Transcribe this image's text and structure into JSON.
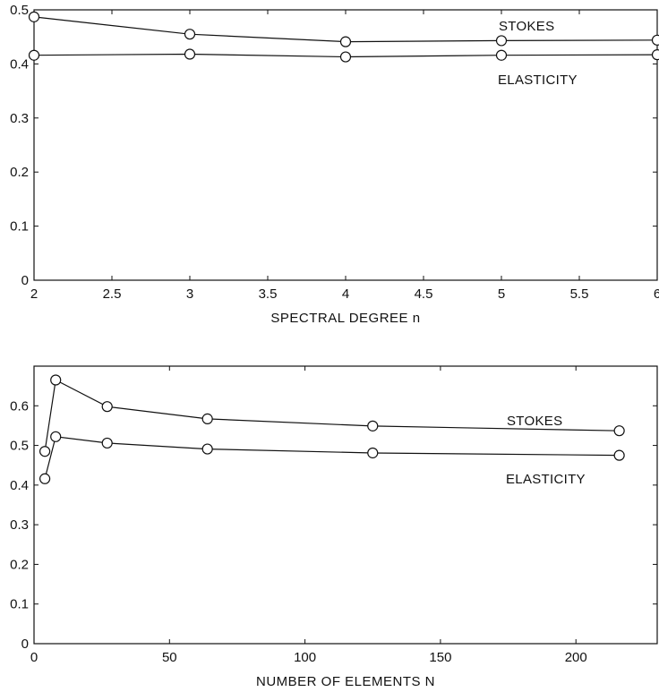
{
  "chart_data": [
    {
      "type": "line",
      "title": "",
      "xlabel": "SPECTRAL DEGREE n",
      "ylabel": "",
      "xlim": [
        2,
        6
      ],
      "ylim": [
        0,
        0.5
      ],
      "xticks": [
        "2",
        "2.5",
        "3",
        "3.5",
        "4",
        "4.5",
        "5",
        "5.5",
        "6"
      ],
      "yticks": [
        "0",
        "0.1",
        "0.2",
        "0.3",
        "0.4",
        "0.5"
      ],
      "grid": false,
      "marker": "circle",
      "series": [
        {
          "name": "STOKES",
          "x": [
            2,
            3,
            4,
            5,
            6
          ],
          "y": [
            0.487,
            0.455,
            0.441,
            0.443,
            0.444
          ]
        },
        {
          "name": "ELASTICITY",
          "x": [
            2,
            3,
            4,
            5,
            6
          ],
          "y": [
            0.416,
            0.418,
            0.413,
            0.416,
            0.417
          ]
        }
      ]
    },
    {
      "type": "line",
      "title": "",
      "xlabel": "NUMBER OF ELEMENTS N",
      "ylabel": "",
      "xlim": [
        0,
        230
      ],
      "ylim": [
        0,
        0.7
      ],
      "xticks": [
        "0",
        "50",
        "100",
        "150",
        "200"
      ],
      "yticks": [
        "0",
        "0.1",
        "0.2",
        "0.3",
        "0.4",
        "0.5",
        "0.6"
      ],
      "grid": false,
      "marker": "circle",
      "series": [
        {
          "name": "STOKES",
          "x": [
            4,
            8,
            27,
            64,
            125,
            216
          ],
          "y": [
            0.485,
            0.665,
            0.598,
            0.567,
            0.549,
            0.537
          ]
        },
        {
          "name": "ELASTICITY",
          "x": [
            4,
            8,
            27,
            64,
            125,
            216
          ],
          "y": [
            0.416,
            0.522,
            0.506,
            0.491,
            0.481,
            0.475
          ]
        }
      ]
    }
  ]
}
